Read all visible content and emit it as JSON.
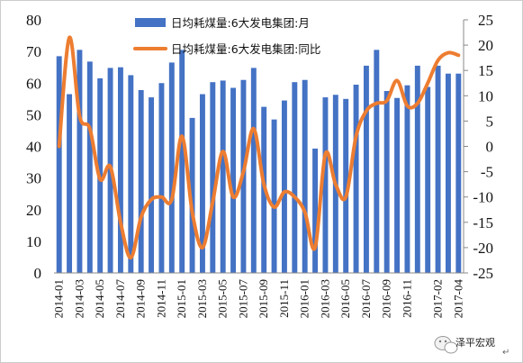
{
  "chart_data": {
    "type": "bar+line",
    "title": "",
    "xlabel": "",
    "ylabel": "",
    "ylim": [
      0,
      80
    ],
    "y_ticks": [
      0,
      10,
      20,
      30,
      40,
      50,
      60,
      70,
      80
    ],
    "y2lim": [
      -25,
      25
    ],
    "y2_ticks": [
      -25,
      -20,
      -15,
      -10,
      -5,
      0,
      5,
      10,
      15,
      20,
      25
    ],
    "grid": false,
    "legend_position": "top-center",
    "categories": [
      "2014-01",
      "2014-02",
      "2014-03",
      "2014-04",
      "2014-05",
      "2014-06",
      "2014-07",
      "2014-08",
      "2014-09",
      "2014-10",
      "2014-11",
      "2014-12",
      "2015-01",
      "2015-02",
      "2015-03",
      "2015-04",
      "2015-05",
      "2015-06",
      "2015-07",
      "2015-08",
      "2015-09",
      "2015-10",
      "2015-11",
      "2015-12",
      "2016-01",
      "2016-02",
      "2016-03",
      "2016-04",
      "2016-05",
      "2016-06",
      "2016-07",
      "2016-08",
      "2016-09",
      "2016-10",
      "2016-11",
      "2016-12",
      "2017-01",
      "2017-02",
      "2017-03",
      "2017-04"
    ],
    "x_tick_labels": [
      "2014-01",
      "2014-03",
      "2014-05",
      "2014-07",
      "2014-09",
      "2014-11",
      "2015-01",
      "2015-03",
      "2015-05",
      "2015-07",
      "2015-09",
      "2015-11",
      "2016-01",
      "2016-03",
      "2016-05",
      "2016-07",
      "2016-09",
      "2016-11",
      "2017-02",
      "2017-04"
    ],
    "series": [
      {
        "name": "日均耗煤量:6大发电集团:月",
        "type": "bar",
        "axis": "left",
        "color": "#4472C4",
        "values": [
          68.5,
          56.5,
          70.5,
          66.8,
          61.5,
          64.8,
          65.0,
          62.5,
          57.8,
          55.5,
          60.0,
          66.5,
          70.5,
          49.0,
          56.5,
          60.3,
          60.8,
          58.5,
          61.0,
          64.8,
          52.5,
          48.5,
          54.5,
          60.3,
          61.0,
          39.3,
          55.5,
          56.3,
          55.0,
          59.5,
          65.5,
          70.5,
          57.5,
          55.3,
          59.3,
          65.5,
          58.8,
          65.5,
          63.0,
          63.0
        ]
      },
      {
        "name": "日均耗煤量:6大发电集团:同比",
        "type": "line",
        "axis": "right",
        "color": "#ED7D31",
        "values": [
          0,
          21.5,
          6.0,
          3.5,
          -6.5,
          -4.0,
          -15.0,
          -22.0,
          -14.0,
          -10.5,
          -10.0,
          -10.5,
          2.0,
          -13.0,
          -20.0,
          -11.0,
          -1.0,
          -10.0,
          -5.0,
          3.5,
          -7.5,
          -12.0,
          -9.0,
          -10.0,
          -13.0,
          -20.0,
          -1.5,
          -7.5,
          -10.0,
          2.0,
          7.0,
          8.5,
          9.0,
          13.0,
          8.0,
          8.5,
          12.5,
          17.0,
          18.5,
          18.0
        ]
      }
    ]
  },
  "watermark": {
    "text": "泽平宏观",
    "icon": "wechat-chat-bubble-icon"
  },
  "colors": {
    "bar": "#4472C4",
    "line": "#ED7D31",
    "axis": "#888888",
    "border": "#c8c8c8"
  }
}
